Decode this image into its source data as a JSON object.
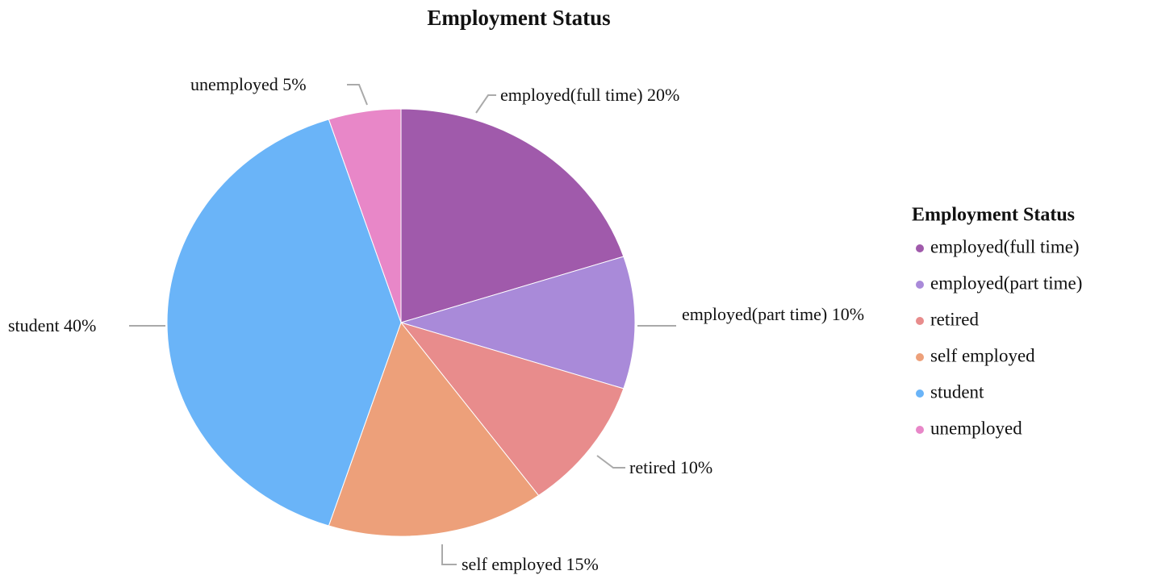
{
  "chart_data": {
    "type": "pie",
    "title": "Employment Status",
    "categories": [
      "employed(full time)",
      "employed(part time)",
      "retired",
      "self employed",
      "student",
      "unemployed"
    ],
    "values": [
      20,
      10,
      10,
      15,
      40,
      5
    ],
    "value_labels": [
      "employed(full time) 20%",
      "employed(part time) 10%",
      "retired 10%",
      "self employed 15%",
      "student 40%",
      "unemployed 5%"
    ],
    "colors": [
      "#a05aab",
      "#a98ad9",
      "#e88c8c",
      "#eda07a",
      "#6ab4f8",
      "#e887c8"
    ],
    "legend_title": "Employment Status",
    "legend": "right"
  }
}
